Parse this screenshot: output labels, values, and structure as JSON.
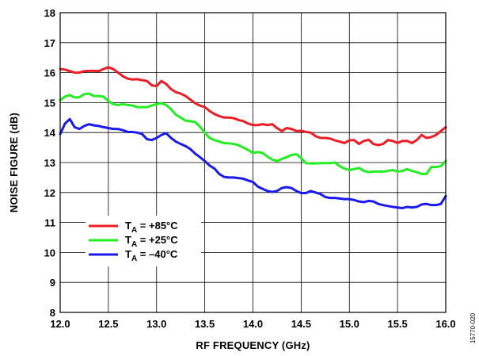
{
  "chart_data": {
    "type": "line",
    "title": "",
    "xlabel": "RF FREQUENCY (GHz)",
    "ylabel": "NOISE FIGURE (dB)",
    "xlim": [
      12.0,
      16.0
    ],
    "ylim": [
      8,
      18
    ],
    "xticks": [
      "12.0",
      "12.5",
      "13.0",
      "13.5",
      "14.0",
      "14.5",
      "15.0",
      "15.5",
      "16.0"
    ],
    "yticks": [
      "8",
      "9",
      "10",
      "11",
      "12",
      "13",
      "14",
      "15",
      "16",
      "17",
      "18"
    ],
    "grid": true,
    "legend_position": "lower-left",
    "series": [
      {
        "name": "TA = +85°C",
        "legend_main": "T",
        "legend_sub": "A",
        "legend_rest": " = +85°C",
        "color": "#ee1c24",
        "x": [
          12.0,
          12.05,
          12.1,
          12.15,
          12.2,
          12.25,
          12.3,
          12.35,
          12.4,
          12.45,
          12.5,
          12.55,
          12.6,
          12.65,
          12.7,
          12.75,
          12.8,
          12.85,
          12.9,
          12.95,
          13.0,
          13.05,
          13.1,
          13.15,
          13.2,
          13.25,
          13.3,
          13.35,
          13.4,
          13.45,
          13.5,
          13.55,
          13.6,
          13.65,
          13.7,
          13.75,
          13.8,
          13.85,
          13.9,
          13.95,
          14.0,
          14.05,
          14.1,
          14.15,
          14.2,
          14.25,
          14.3,
          14.35,
          14.4,
          14.45,
          14.5,
          14.55,
          14.6,
          14.65,
          14.7,
          14.75,
          14.8,
          14.85,
          14.9,
          14.95,
          15.0,
          15.05,
          15.1,
          15.15,
          15.2,
          15.25,
          15.3,
          15.35,
          15.4,
          15.45,
          15.5,
          15.55,
          15.6,
          15.65,
          15.7,
          15.75,
          15.8,
          15.85,
          15.9,
          15.95,
          16.0
        ],
        "y": [
          16.12,
          16.1,
          16.05,
          16.0,
          16.0,
          16.05,
          16.06,
          16.06,
          16.05,
          16.12,
          16.18,
          16.12,
          16.0,
          15.88,
          15.8,
          15.77,
          15.78,
          15.75,
          15.72,
          15.58,
          15.55,
          15.72,
          15.62,
          15.45,
          15.35,
          15.3,
          15.22,
          15.1,
          14.98,
          14.9,
          14.85,
          14.72,
          14.62,
          14.55,
          14.5,
          14.5,
          14.48,
          14.42,
          14.38,
          14.3,
          14.25,
          14.25,
          14.28,
          14.25,
          14.28,
          14.15,
          14.05,
          14.15,
          14.12,
          14.05,
          14.06,
          14.02,
          14.0,
          13.88,
          13.82,
          13.82,
          13.8,
          13.74,
          13.7,
          13.65,
          13.74,
          13.75,
          13.62,
          13.72,
          13.76,
          13.62,
          13.58,
          13.62,
          13.75,
          13.72,
          13.65,
          13.72,
          13.72,
          13.65,
          13.75,
          13.92,
          13.82,
          13.85,
          13.92,
          14.05,
          14.18
        ]
      },
      {
        "name": "TA = +25°C",
        "legend_main": "T",
        "legend_sub": "A",
        "legend_rest": " = +25°C",
        "color": "#22ee22",
        "x": [
          12.0,
          12.05,
          12.1,
          12.15,
          12.2,
          12.25,
          12.3,
          12.35,
          12.4,
          12.45,
          12.5,
          12.55,
          12.6,
          12.65,
          12.7,
          12.75,
          12.8,
          12.85,
          12.9,
          12.95,
          13.0,
          13.05,
          13.1,
          13.15,
          13.2,
          13.25,
          13.3,
          13.35,
          13.4,
          13.45,
          13.5,
          13.55,
          13.6,
          13.65,
          13.7,
          13.75,
          13.8,
          13.85,
          13.9,
          13.95,
          14.0,
          14.05,
          14.1,
          14.15,
          14.2,
          14.25,
          14.3,
          14.35,
          14.4,
          14.45,
          14.5,
          14.55,
          14.6,
          14.65,
          14.7,
          14.75,
          14.8,
          14.85,
          14.9,
          14.95,
          15.0,
          15.05,
          15.1,
          15.15,
          15.2,
          15.25,
          15.3,
          15.35,
          15.4,
          15.45,
          15.5,
          15.55,
          15.6,
          15.65,
          15.7,
          15.75,
          15.8,
          15.85,
          15.9,
          15.95,
          16.0
        ],
        "y": [
          15.08,
          15.2,
          15.25,
          15.17,
          15.18,
          15.28,
          15.3,
          15.22,
          15.22,
          15.2,
          15.05,
          14.95,
          14.92,
          14.95,
          14.92,
          14.9,
          14.85,
          14.85,
          14.85,
          14.9,
          14.95,
          14.98,
          14.92,
          14.78,
          14.6,
          14.5,
          14.4,
          14.38,
          14.35,
          14.2,
          14.0,
          13.82,
          13.75,
          13.7,
          13.65,
          13.64,
          13.62,
          13.58,
          13.5,
          13.42,
          13.32,
          13.35,
          13.32,
          13.2,
          13.1,
          13.05,
          13.12,
          13.18,
          13.25,
          13.28,
          13.15,
          12.98,
          12.97,
          12.97,
          12.98,
          12.98,
          12.98,
          13.0,
          12.88,
          12.8,
          12.75,
          12.78,
          12.82,
          12.72,
          12.68,
          12.7,
          12.7,
          12.7,
          12.72,
          12.75,
          12.7,
          12.72,
          12.78,
          12.72,
          12.68,
          12.62,
          12.62,
          12.85,
          12.85,
          12.88,
          13.05
        ]
      },
      {
        "name": "TA = –40°C",
        "legend_main": "T",
        "legend_sub": "A",
        "legend_rest": " = –40°C",
        "color": "#1a1aee",
        "x": [
          12.0,
          12.05,
          12.1,
          12.15,
          12.2,
          12.25,
          12.3,
          12.35,
          12.4,
          12.45,
          12.5,
          12.55,
          12.6,
          12.65,
          12.7,
          12.75,
          12.8,
          12.85,
          12.9,
          12.95,
          13.0,
          13.05,
          13.1,
          13.15,
          13.2,
          13.25,
          13.3,
          13.35,
          13.4,
          13.45,
          13.5,
          13.55,
          13.6,
          13.65,
          13.7,
          13.75,
          13.8,
          13.85,
          13.9,
          13.95,
          14.0,
          14.05,
          14.1,
          14.15,
          14.2,
          14.25,
          14.3,
          14.35,
          14.4,
          14.45,
          14.5,
          14.55,
          14.6,
          14.65,
          14.7,
          14.75,
          14.8,
          14.85,
          14.9,
          14.95,
          15.0,
          15.05,
          15.1,
          15.15,
          15.2,
          15.25,
          15.3,
          15.35,
          15.4,
          15.45,
          15.5,
          15.55,
          15.6,
          15.65,
          15.7,
          15.75,
          15.8,
          15.85,
          15.9,
          15.95,
          16.0
        ],
        "y": [
          13.95,
          14.3,
          14.45,
          14.18,
          14.12,
          14.22,
          14.28,
          14.24,
          14.22,
          14.18,
          14.15,
          14.12,
          14.12,
          14.08,
          14.02,
          14.02,
          14.0,
          13.95,
          13.78,
          13.75,
          13.82,
          13.92,
          13.98,
          13.82,
          13.7,
          13.62,
          13.55,
          13.45,
          13.3,
          13.18,
          13.05,
          12.9,
          12.8,
          12.62,
          12.52,
          12.5,
          12.5,
          12.48,
          12.46,
          12.4,
          12.35,
          12.2,
          12.12,
          12.05,
          12.02,
          12.05,
          12.15,
          12.18,
          12.15,
          12.05,
          11.98,
          11.98,
          12.05,
          12.0,
          11.95,
          11.85,
          11.82,
          11.82,
          11.8,
          11.78,
          11.78,
          11.75,
          11.7,
          11.68,
          11.72,
          11.7,
          11.62,
          11.58,
          11.55,
          11.52,
          11.5,
          11.48,
          11.52,
          11.5,
          11.52,
          11.6,
          11.62,
          11.58,
          11.58,
          11.62,
          11.88
        ]
      }
    ]
  },
  "figure_id": "15770-020"
}
